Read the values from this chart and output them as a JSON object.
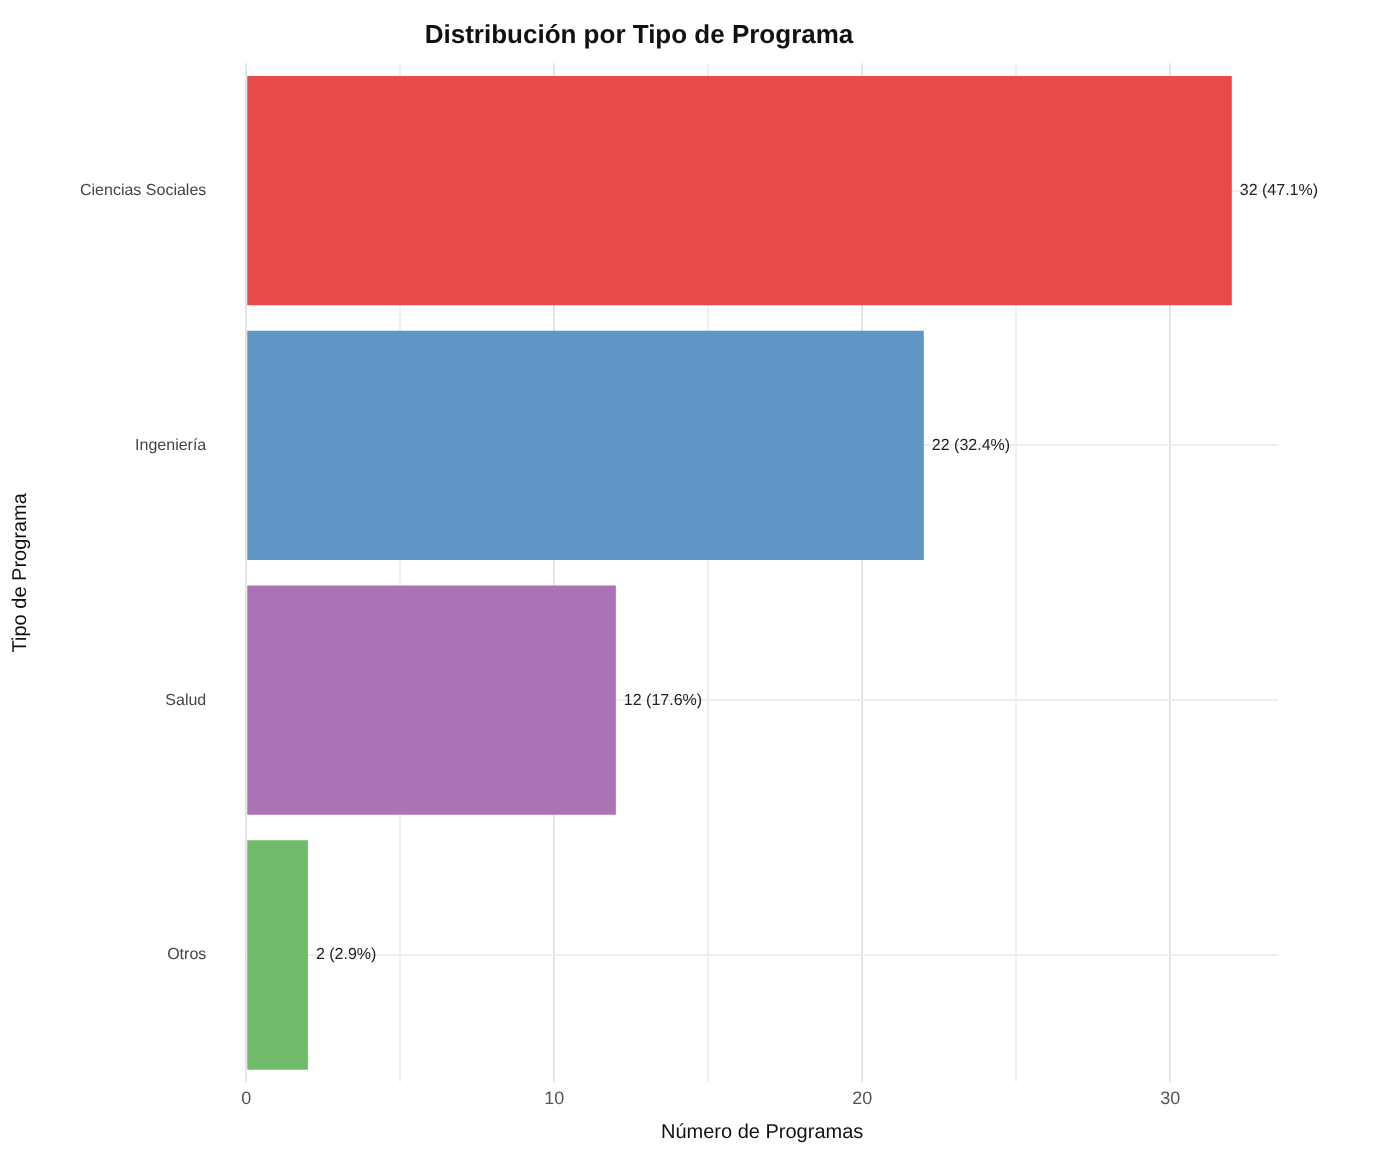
{
  "chart_data": {
    "type": "bar",
    "orientation": "horizontal",
    "title": "Distribución por Tipo de Programa",
    "xlabel": "Número de Programas",
    "ylabel": "Tipo de Programa",
    "categories": [
      "Ciencias Sociales",
      "Ingeniería",
      "Salud",
      "Otros"
    ],
    "values": [
      32,
      22,
      12,
      2
    ],
    "colors": [
      "#e84a4b",
      "#6096c6",
      "#ab72b5",
      "#6fbb69"
    ],
    "value_labels": [
      "32 (47.1%)",
      "22 (32.4%)",
      "12 (17.6%)",
      "2 (2.9%)"
    ],
    "xlim": [
      0,
      33.5
    ],
    "xticks": [
      0,
      {
        "value": 5,
        "label": null
      },
      10,
      {
        "value": 15,
        "label": null
      },
      20,
      {
        "value": 25,
        "label": null
      },
      30
    ],
    "grid": true,
    "legend": false
  }
}
